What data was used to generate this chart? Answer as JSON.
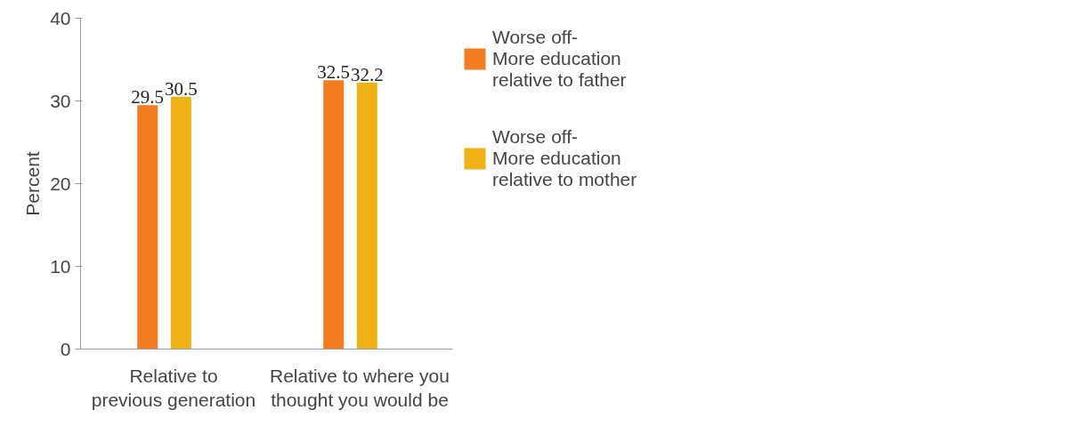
{
  "chart_data": {
    "type": "bar",
    "ylabel": "Percent",
    "categories": [
      "Relative to\nprevious generation",
      "Relative to where you\nthought you would be"
    ],
    "series": [
      {
        "name": "Worse off-\nMore education\nrelative to father",
        "color": "#f47c20",
        "values": [
          29.5,
          32.5
        ]
      },
      {
        "name": "Worse off-\nMore education\nrelative to mother",
        "color": "#efb116",
        "values": [
          30.5,
          32.2
        ]
      }
    ],
    "ylim": [
      0,
      40
    ],
    "yticks": [
      0,
      10,
      20,
      30,
      40
    ],
    "grid": false,
    "legend": "right",
    "data_labels": true
  }
}
